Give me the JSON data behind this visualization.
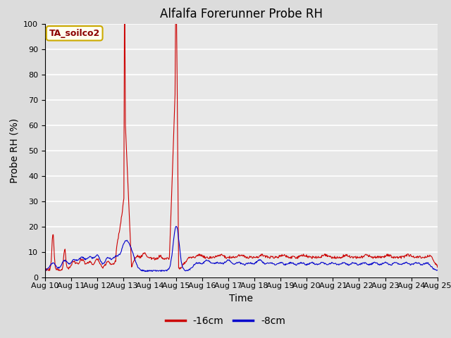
{
  "title": "Alfalfa Forerunner Probe RH",
  "xlabel": "Time",
  "ylabel": "Probe RH (%)",
  "ylim": [
    0,
    100
  ],
  "x_tick_labels": [
    "Aug 10",
    "Aug 11",
    "Aug 12",
    "Aug 13",
    "Aug 14",
    "Aug 15",
    "Aug 16",
    "Aug 17",
    "Aug 18",
    "Aug 19",
    "Aug 20",
    "Aug 21",
    "Aug 22",
    "Aug 23",
    "Aug 24",
    "Aug 25"
  ],
  "station_label": "TA_soilco2",
  "fig_bg_color": "#dcdcdc",
  "plot_bg_color": "#e8e8e8",
  "line1_color": "#cc0000",
  "line2_color": "#0000cc",
  "legend_labels": [
    "-16cm",
    "-8cm"
  ],
  "title_fontsize": 12,
  "axis_label_fontsize": 10,
  "tick_fontsize": 8
}
